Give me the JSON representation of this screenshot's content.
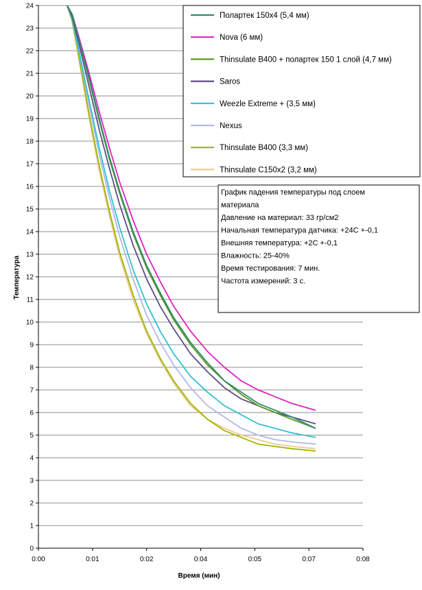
{
  "chart_data": {
    "type": "line",
    "xlabel": "Время (мин)",
    "ylabel": "Температура",
    "xlim": [
      0,
      8
    ],
    "ylim": [
      0,
      24
    ],
    "x_ticks": [
      {
        "v": 0,
        "label": "0:00"
      },
      {
        "v": 1.6,
        "label": "0:01"
      },
      {
        "v": 3.2,
        "label": "0:02"
      },
      {
        "v": 4.8,
        "label": "0:04"
      },
      {
        "v": 6.4,
        "label": "0:05"
      },
      {
        "v": 8.0,
        "label": "0:07"
      },
      {
        "v": 9.6,
        "label": "0:08"
      }
    ],
    "y_ticks": [
      0,
      1,
      2,
      3,
      4,
      5,
      6,
      7,
      8,
      9,
      10,
      11,
      12,
      13,
      14,
      15,
      16,
      17,
      18,
      19,
      20,
      21,
      22,
      23,
      24
    ],
    "grid": true,
    "legend_position": "top-right",
    "series": [
      {
        "name": "Полартек 150x4 (5,4 мм)",
        "color": "#2e8b6e",
        "x": [
          0.85,
          1.0,
          1.2,
          1.5,
          1.8,
          2.1,
          2.4,
          2.8,
          3.2,
          3.6,
          4.0,
          4.5,
          5.0,
          5.5,
          6.0,
          6.5,
          7.0,
          7.5,
          8.2
        ],
        "y": [
          24.0,
          23.6,
          22.5,
          20.8,
          19.0,
          17.3,
          15.8,
          14.0,
          12.5,
          11.3,
          10.2,
          9.1,
          8.2,
          7.4,
          6.9,
          6.4,
          6.1,
          5.8,
          5.3
        ]
      },
      {
        "name": "Nova (6 мм)",
        "color": "#e020c0",
        "x": [
          0.85,
          1.0,
          1.2,
          1.5,
          1.8,
          2.1,
          2.4,
          2.8,
          3.2,
          3.6,
          4.0,
          4.5,
          5.0,
          5.5,
          6.0,
          6.5,
          7.0,
          7.5,
          8.2
        ],
        "y": [
          24.0,
          23.6,
          22.6,
          21.0,
          19.3,
          17.7,
          16.2,
          14.5,
          13.0,
          11.8,
          10.7,
          9.6,
          8.7,
          8.0,
          7.4,
          7.0,
          6.7,
          6.4,
          6.1
        ]
      },
      {
        "name": "Thinsulate B400 + полартек 150 1 слой (4,7 мм)",
        "color": "#5a9a20",
        "x": [
          0.85,
          1.0,
          1.2,
          1.5,
          1.8,
          2.1,
          2.4,
          2.8,
          3.2,
          3.6,
          4.0,
          4.5,
          5.0,
          5.5,
          6.0,
          6.5,
          7.0,
          7.5,
          8.2
        ],
        "y": [
          24.0,
          23.6,
          22.5,
          20.7,
          18.9,
          17.2,
          15.7,
          13.9,
          12.4,
          11.2,
          10.1,
          9.0,
          8.1,
          7.4,
          6.8,
          6.3,
          6.0,
          5.7,
          5.3
        ]
      },
      {
        "name": "Saros",
        "color": "#5c4a8a",
        "x": [
          0.85,
          1.0,
          1.2,
          1.5,
          1.8,
          2.1,
          2.4,
          2.8,
          3.2,
          3.6,
          4.0,
          4.5,
          5.0,
          5.5,
          6.0,
          6.5,
          7.0,
          7.5,
          8.2
        ],
        "y": [
          24.0,
          23.5,
          22.3,
          20.4,
          18.5,
          16.8,
          15.2,
          13.4,
          11.9,
          10.7,
          9.7,
          8.6,
          7.8,
          7.1,
          6.6,
          6.3,
          6.0,
          5.8,
          5.5
        ]
      },
      {
        "name": "Weezle Extreme + (3,5 мм)",
        "color": "#30c0d0",
        "x": [
          0.85,
          1.0,
          1.2,
          1.5,
          1.8,
          2.1,
          2.4,
          2.8,
          3.2,
          3.6,
          4.0,
          4.5,
          5.0,
          5.5,
          6.0,
          6.5,
          7.0,
          7.5,
          8.2
        ],
        "y": [
          24.0,
          23.4,
          22.0,
          19.8,
          17.7,
          15.8,
          14.2,
          12.3,
          10.8,
          9.6,
          8.6,
          7.6,
          6.9,
          6.3,
          5.9,
          5.5,
          5.3,
          5.1,
          4.9
        ]
      },
      {
        "name": "Nexus",
        "color": "#b0b8e8",
        "x": [
          0.85,
          1.0,
          1.2,
          1.5,
          1.8,
          2.1,
          2.4,
          2.8,
          3.2,
          3.6,
          4.0,
          4.5,
          5.0,
          5.5,
          6.0,
          6.5,
          7.0,
          7.5,
          8.2
        ],
        "y": [
          24.0,
          23.4,
          21.9,
          19.6,
          17.4,
          15.5,
          13.8,
          11.9,
          10.3,
          9.1,
          8.1,
          7.1,
          6.3,
          5.8,
          5.3,
          5.0,
          4.8,
          4.7,
          4.6
        ]
      },
      {
        "name": "Thinsulate B400 (3,3 мм)",
        "color": "#9ab800",
        "x": [
          0.85,
          1.0,
          1.2,
          1.5,
          1.8,
          2.1,
          2.4,
          2.8,
          3.2,
          3.6,
          4.0,
          4.5,
          5.0,
          5.5,
          6.0,
          6.5,
          7.0,
          7.5,
          8.2
        ],
        "y": [
          24.0,
          23.3,
          21.7,
          19.2,
          16.9,
          14.9,
          13.1,
          11.2,
          9.6,
          8.4,
          7.4,
          6.4,
          5.7,
          5.2,
          4.9,
          4.6,
          4.5,
          4.4,
          4.3
        ]
      },
      {
        "name": "Thinsulate C150x2 (3,2 мм)",
        "color": "#f0c890",
        "x": [
          0.85,
          1.0,
          1.2,
          1.5,
          1.8,
          2.1,
          2.4,
          2.8,
          3.2,
          3.6,
          4.0,
          4.5,
          5.0,
          5.5,
          6.0,
          6.5,
          7.0,
          7.5,
          8.2
        ],
        "y": [
          24.0,
          23.3,
          21.6,
          19.0,
          16.7,
          14.7,
          12.9,
          11.0,
          9.5,
          8.3,
          7.3,
          6.3,
          5.7,
          5.3,
          5.0,
          4.8,
          4.6,
          4.5,
          4.4
        ]
      }
    ],
    "annotation_lines": [
      "График падения температуры под слоем",
      "материала",
      "Давление на материал: 33 гр/см2",
      "Начальная температура датчика: +24С +-0,1",
      "Внешняя температура: +2С +-0,1",
      "Влажность: 25-40%",
      "Время тестирования: 7 мин.",
      "Частота измерений: 3 с."
    ]
  }
}
